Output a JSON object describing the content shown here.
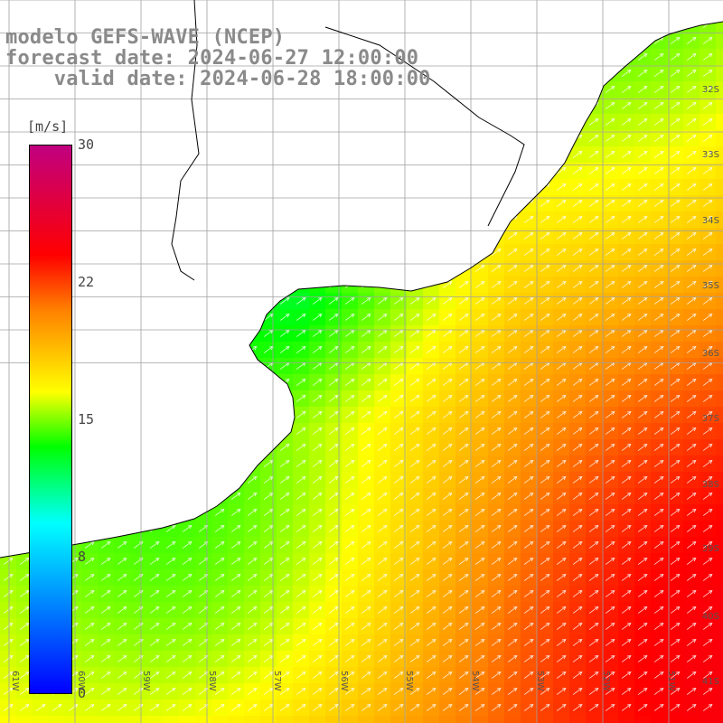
{
  "title": {
    "line1": "modelo GEFS-WAVE (NCEP)",
    "line2": "forecast date: 2024-06-27 12:00:00",
    "line3": "    valid date: 2024-06-28 18:00:00"
  },
  "colorbar": {
    "unit": "[m/s]",
    "ticks": [
      "30",
      "22",
      "15",
      "8",
      "0"
    ],
    "colors": [
      "#0000ff",
      "#00ffff",
      "#00ff00",
      "#ffff00",
      "#ff8000",
      "#ff0000",
      "#c00080"
    ]
  },
  "lat_labels": [
    "32S",
    "33S",
    "34S",
    "35S",
    "36S",
    "37S",
    "38S",
    "39S",
    "40S",
    "41S"
  ],
  "lon_labels": [
    "61W",
    "60W",
    "59W",
    "58W",
    "57W",
    "56W",
    "55W",
    "54W",
    "53W",
    "52W",
    "51W"
  ],
  "map": {
    "land_color": "#ffffff",
    "coast_color": "#000000",
    "grid_color": "#a0a0a0",
    "arrow_color": "#ffffff"
  }
}
